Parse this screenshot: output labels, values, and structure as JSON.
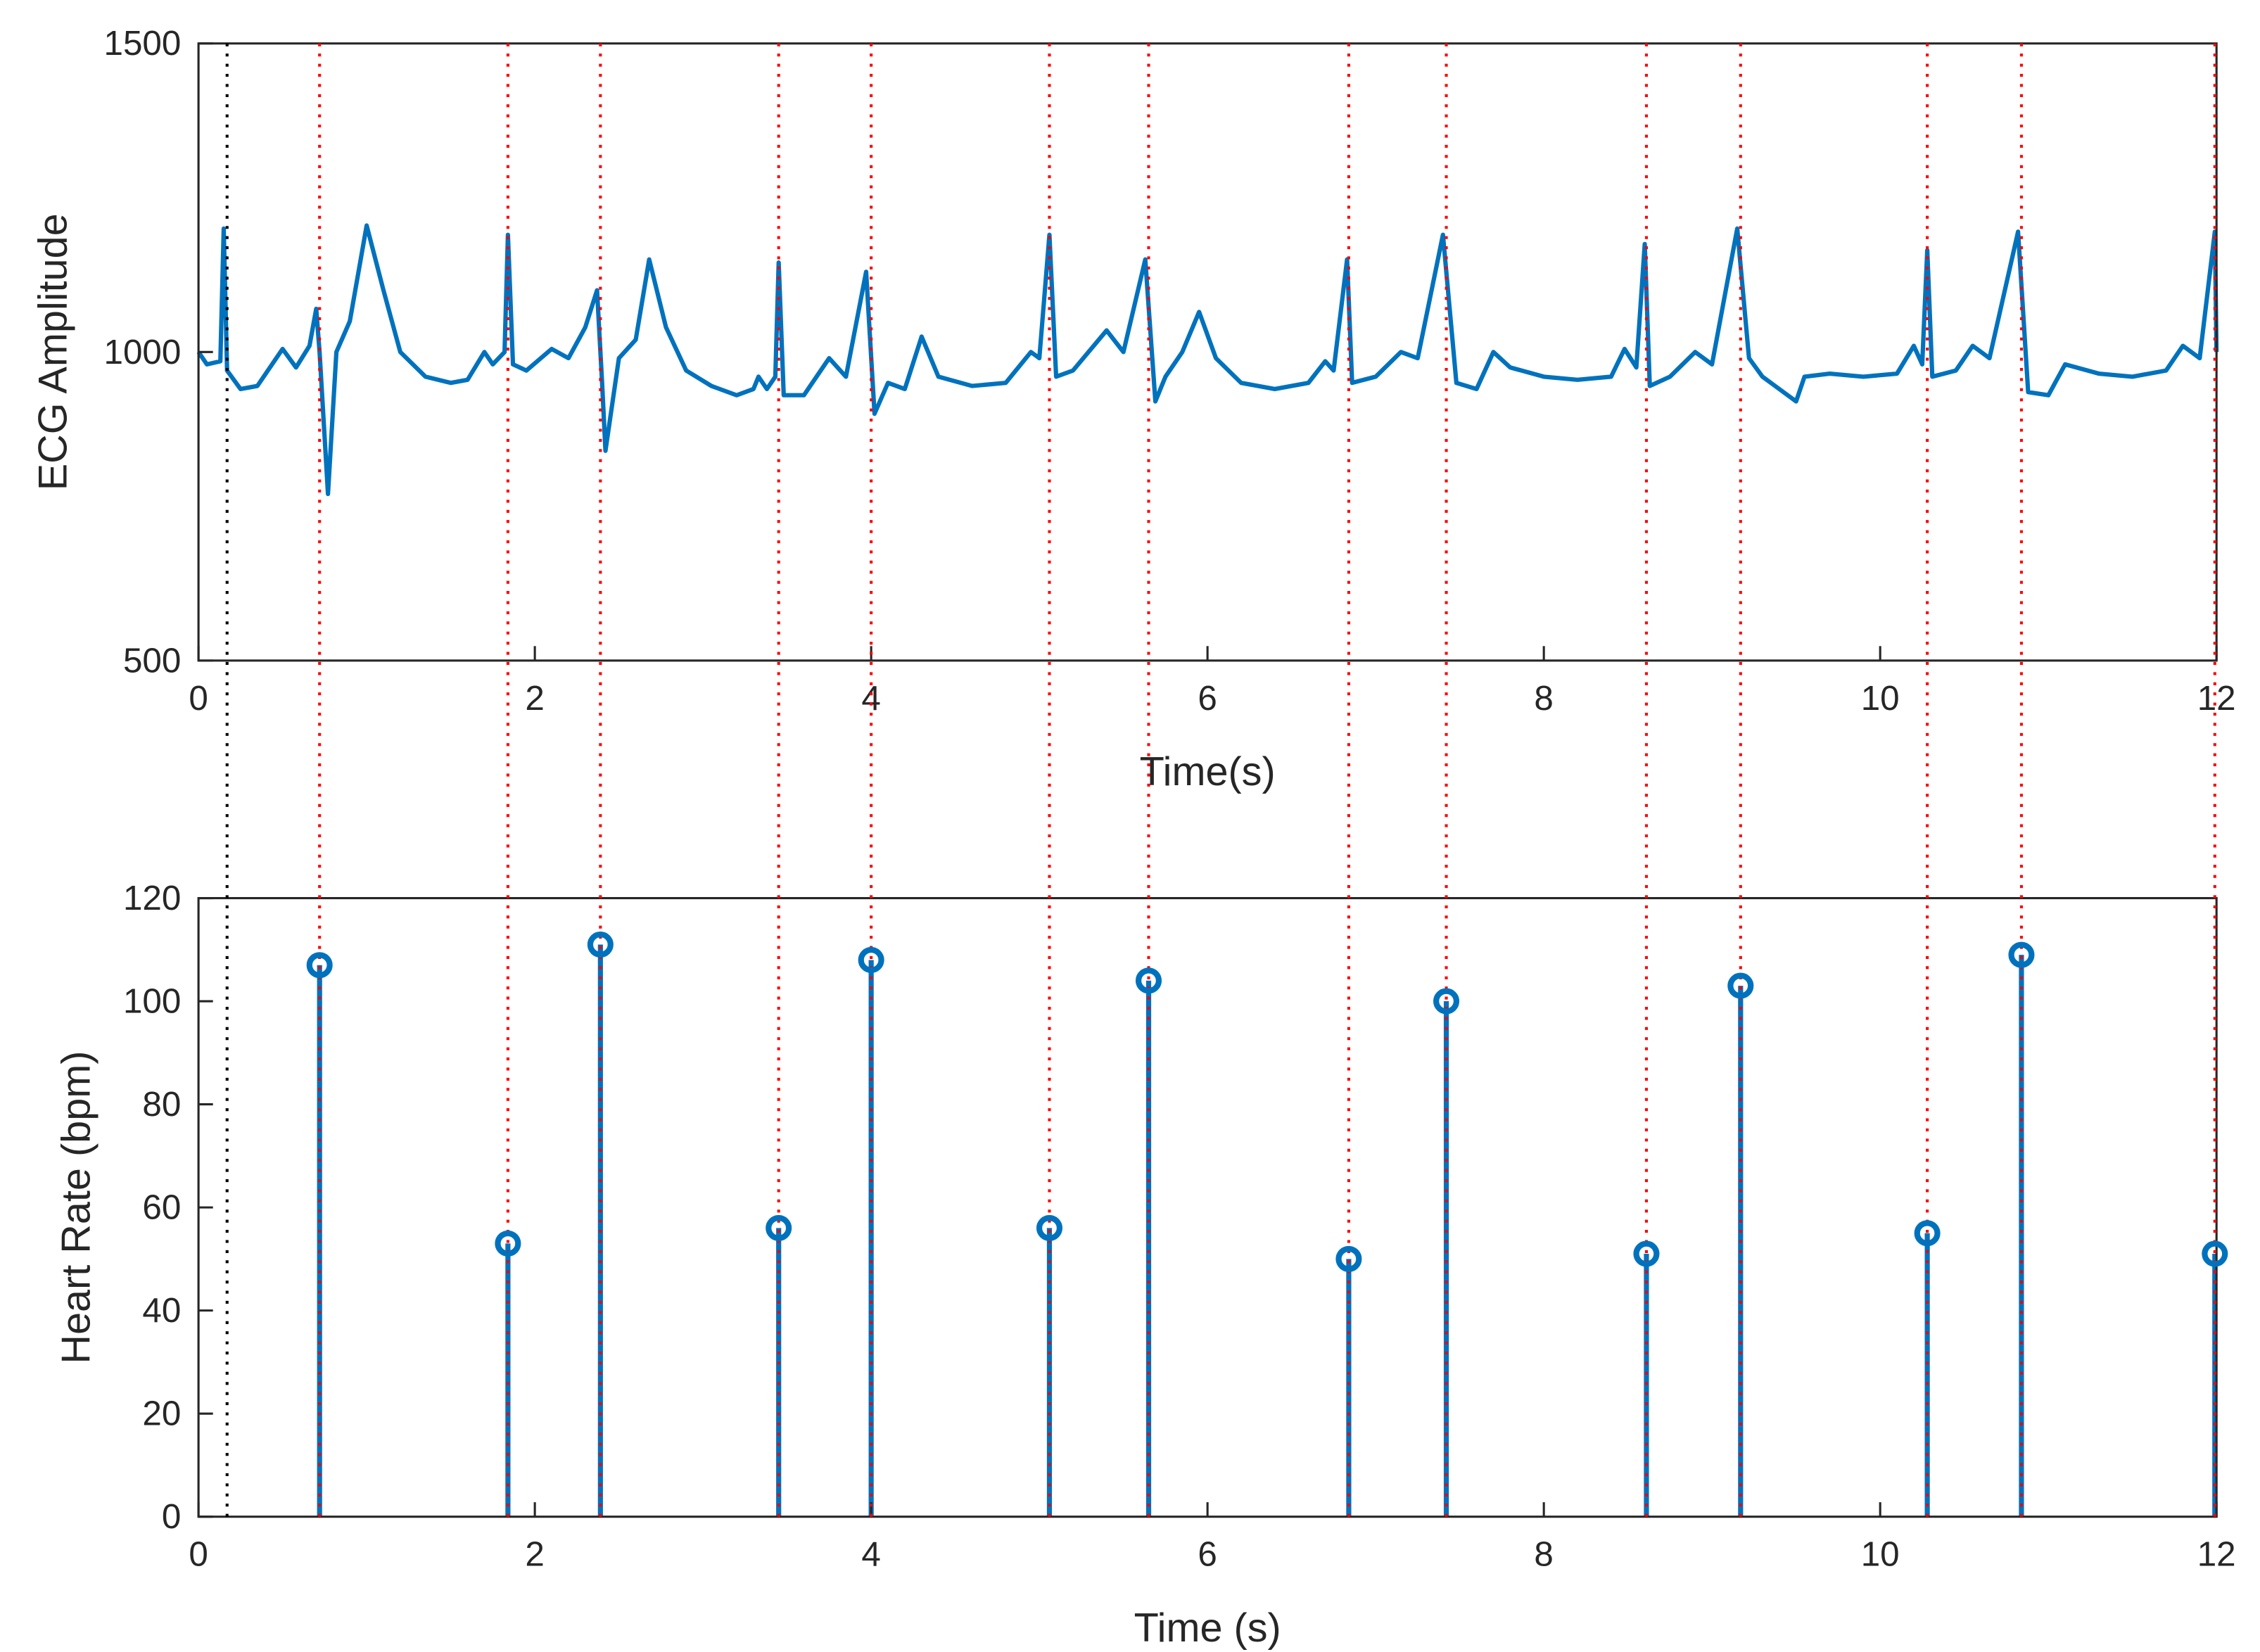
{
  "chart_data": [
    {
      "type": "line",
      "xlabel": "Time(s)",
      "ylabel": "ECG Amplitude",
      "color": "#0072bd",
      "xlim": [
        0,
        12
      ],
      "xticks": [
        0,
        2,
        4,
        6,
        8,
        10,
        12
      ],
      "ylim": [
        500,
        1500
      ],
      "yticks": [
        500,
        1000,
        1500
      ],
      "beat_line_color": "#ff0000",
      "vlines": [
        {
          "value": 0.17,
          "color": "#000000"
        }
      ],
      "x": [
        0,
        0.05,
        0.13,
        0.15,
        0.17,
        0.25,
        0.35,
        0.5,
        0.58,
        0.66,
        0.7,
        0.72,
        0.77,
        0.82,
        0.9,
        1.0,
        1.1,
        1.2,
        1.35,
        1.5,
        1.6,
        1.7,
        1.75,
        1.82,
        1.84,
        1.87,
        1.95,
        2.1,
        2.2,
        2.3,
        2.37,
        2.4,
        2.42,
        2.5,
        2.6,
        2.68,
        2.78,
        2.9,
        3.05,
        3.2,
        3.3,
        3.33,
        3.38,
        3.43,
        3.45,
        3.48,
        3.6,
        3.75,
        3.85,
        3.97,
        4.02,
        4.1,
        4.2,
        4.3,
        4.4,
        4.6,
        4.8,
        4.95,
        5.0,
        5.06,
        5.1,
        5.2,
        5.4,
        5.5,
        5.63,
        5.69,
        5.75,
        5.85,
        5.95,
        6.05,
        6.2,
        6.4,
        6.6,
        6.7,
        6.75,
        6.83,
        6.86,
        7.0,
        7.15,
        7.25,
        7.4,
        7.48,
        7.6,
        7.7,
        7.8,
        8.0,
        8.2,
        8.4,
        8.48,
        8.55,
        8.6,
        8.63,
        8.75,
        8.9,
        9.0,
        9.15,
        9.22,
        9.3,
        9.4,
        9.5,
        9.55,
        9.7,
        9.9,
        10.1,
        10.2,
        10.25,
        10.28,
        10.31,
        10.45,
        10.55,
        10.65,
        10.82,
        10.88,
        11.0,
        11.1,
        11.3,
        11.5,
        11.7,
        11.8,
        11.9,
        11.99,
        12.0
      ],
      "values": [
        1000,
        980,
        985,
        1200,
        970,
        940,
        945,
        1005,
        975,
        1010,
        1070,
        1000,
        770,
        1000,
        1050,
        1205,
        1100,
        1000,
        960,
        950,
        955,
        1000,
        980,
        1000,
        1190,
        980,
        970,
        1005,
        990,
        1040,
        1100,
        950,
        840,
        990,
        1020,
        1150,
        1040,
        970,
        945,
        930,
        940,
        960,
        940,
        960,
        1145,
        930,
        930,
        990,
        960,
        1130,
        900,
        950,
        940,
        1025,
        960,
        945,
        950,
        1000,
        990,
        1190,
        960,
        970,
        1035,
        1000,
        1150,
        920,
        960,
        1000,
        1065,
        990,
        950,
        940,
        950,
        985,
        970,
        1150,
        950,
        960,
        1000,
        990,
        1190,
        950,
        940,
        1000,
        975,
        960,
        955,
        960,
        1005,
        975,
        1175,
        945,
        960,
        1000,
        980,
        1200,
        990,
        960,
        940,
        920,
        960,
        965,
        960,
        965,
        1010,
        980,
        1165,
        960,
        970,
        1010,
        990,
        1195,
        935,
        930,
        980,
        965,
        960,
        970,
        1010,
        990,
        1195,
        1000
      ]
    },
    {
      "type": "stem",
      "xlabel": "Time (s)",
      "ylabel": "Heart Rate (bpm)",
      "color": "#0072bd",
      "xlim": [
        0,
        12
      ],
      "xticks": [
        0,
        2,
        4,
        6,
        8,
        10,
        12
      ],
      "ylim": [
        0,
        120
      ],
      "yticks": [
        0,
        20,
        40,
        60,
        80,
        100,
        120
      ],
      "x": [
        0.72,
        1.84,
        2.39,
        3.45,
        4.0,
        5.06,
        5.65,
        6.84,
        7.42,
        8.61,
        9.17,
        10.28,
        10.84,
        11.99
      ],
      "values": [
        107,
        53,
        111,
        56,
        108,
        56,
        104,
        50,
        100,
        51,
        103,
        55,
        109,
        51
      ]
    }
  ]
}
